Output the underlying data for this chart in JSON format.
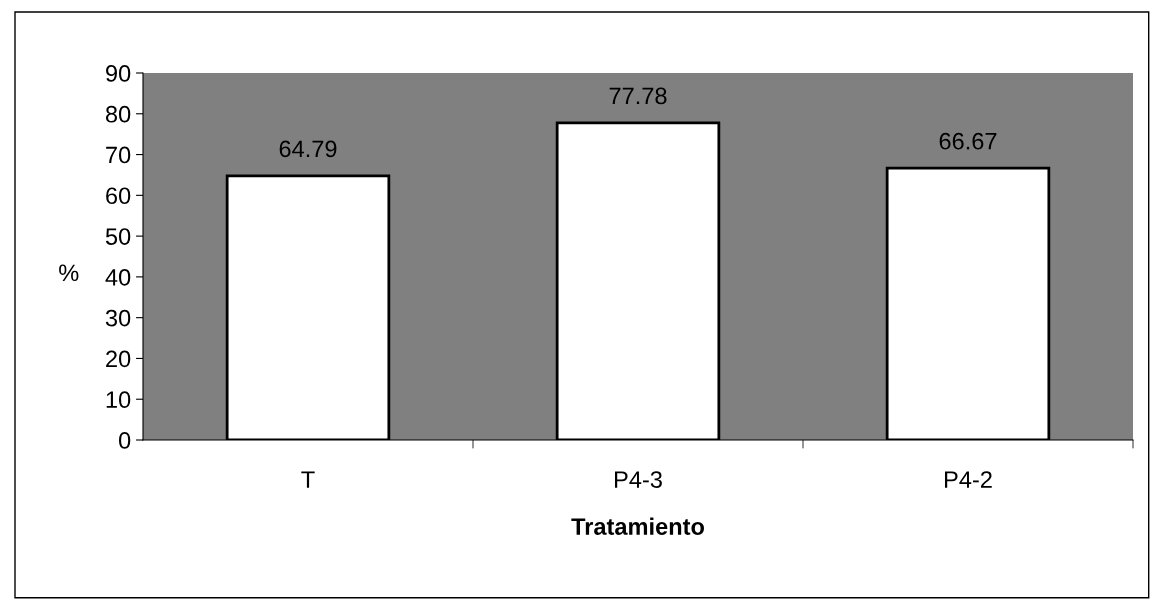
{
  "chart_data": {
    "type": "bar",
    "xlabel": "Tratamiento",
    "ylabel": "%",
    "categories": [
      "T",
      "P4-3",
      "P4-2"
    ],
    "values": [
      64.79,
      77.78,
      66.67
    ],
    "color": "#ffffff",
    "ylim": [
      0,
      90
    ],
    "yticks": [
      0,
      10,
      20,
      30,
      40,
      50,
      60,
      70,
      80,
      90
    ],
    "data_labels": true,
    "grid": false,
    "legend": false
  }
}
